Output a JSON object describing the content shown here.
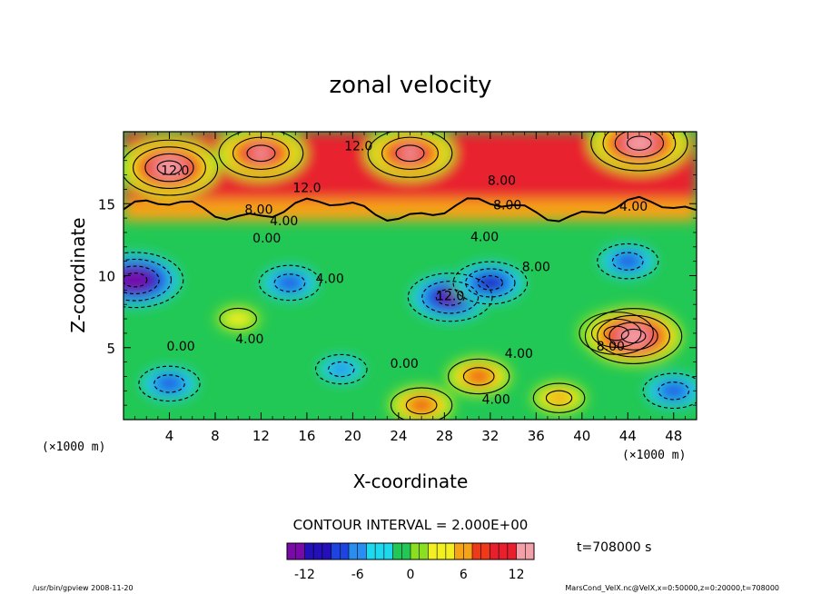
{
  "chart_data": {
    "type": "heatmap",
    "title": "zonal velocity",
    "xlabel": "X-coordinate",
    "ylabel": "Z-coordinate",
    "x_unit": "(×1000 m)",
    "z_unit": "(×1000 m)",
    "xlim": [
      0,
      50
    ],
    "ylim": [
      0,
      20
    ],
    "x_ticks": [
      4,
      8,
      12,
      16,
      20,
      24,
      28,
      32,
      36,
      40,
      44,
      48
    ],
    "y_ticks": [
      5,
      10,
      15
    ],
    "contour_interval_text": "CONTOUR INTERVAL = 2.000E+00",
    "time_text": "t=708000 s",
    "colorbar": {
      "range": [
        -14,
        14
      ],
      "ticks": [
        -12,
        -6,
        0,
        6,
        12
      ],
      "colors": [
        "#7a0aa8",
        "#2410b8",
        "#1e44e0",
        "#2a8ef0",
        "#20d8ee",
        "#22c855",
        "#8ae020",
        "#f2f020",
        "#f5a318",
        "#ee3a18",
        "#e8202e",
        "#f4a0a8"
      ]
    },
    "features": [
      {
        "x": 1,
        "z": 9.7,
        "u": -14
      },
      {
        "x": 4,
        "z": 2.5,
        "u": -8
      },
      {
        "x": 10,
        "z": 7,
        "u": 4
      },
      {
        "x": 14.5,
        "z": 9.5,
        "u": -8
      },
      {
        "x": 19,
        "z": 3.5,
        "u": -6
      },
      {
        "x": 28.5,
        "z": 8.5,
        "u": -12
      },
      {
        "x": 32,
        "z": 9.5,
        "u": -10
      },
      {
        "x": 31,
        "z": 3,
        "u": 8
      },
      {
        "x": 43,
        "z": 6,
        "u": 10
      },
      {
        "x": 44.5,
        "z": 5.8,
        "u": 14
      },
      {
        "x": 44,
        "z": 11,
        "u": -8
      },
      {
        "x": 48,
        "z": 2,
        "u": -8
      },
      {
        "x": 26,
        "z": 1,
        "u": 8
      },
      {
        "x": 38,
        "z": 1.5,
        "u": 6
      },
      {
        "x": 25,
        "z": 18.5,
        "u": 12
      },
      {
        "x": 45,
        "z": 19.2,
        "u": 14
      },
      {
        "x": 4,
        "z": 17.5,
        "u": 14
      },
      {
        "x": 12,
        "z": 18.5,
        "u": 12
      }
    ],
    "contour_labels": [
      {
        "text": "12.0",
        "x": 20.5,
        "z": 18.7
      },
      {
        "text": "12.0",
        "x": 4.5,
        "z": 17
      },
      {
        "text": "12.0",
        "x": 16,
        "z": 15.8
      },
      {
        "text": "8.00",
        "x": 33,
        "z": 16.3
      },
      {
        "text": "8.00",
        "x": 33.5,
        "z": 14.6
      },
      {
        "text": "8.00",
        "x": 11.8,
        "z": 14.3
      },
      {
        "text": "4.00",
        "x": 14,
        "z": 13.5
      },
      {
        "text": "0.00",
        "x": 12.5,
        "z": 12.3
      },
      {
        "text": "4.00",
        "x": 31.5,
        "z": 12.4
      },
      {
        "text": "4.00",
        "x": 44.5,
        "z": 14.5
      },
      {
        "text": "4.00",
        "x": 18,
        "z": 9.5
      },
      {
        "text": "8.00",
        "x": 36,
        "z": 10.3
      },
      {
        "text": "12.0",
        "x": 28.5,
        "z": 8.3
      },
      {
        "text": "4.00",
        "x": 11,
        "z": 5.3
      },
      {
        "text": "0.00",
        "x": 5,
        "z": 4.8
      },
      {
        "text": "0.00",
        "x": 24.5,
        "z": 3.6
      },
      {
        "text": "4.00",
        "x": 34.5,
        "z": 4.3
      },
      {
        "text": "8.00",
        "x": 42.5,
        "z": 4.8
      },
      {
        "text": "4.00",
        "x": 32.5,
        "z": 1.1
      }
    ]
  },
  "footer": {
    "left": "/usr/bin/gpview  2008-11-20",
    "right": "MarsCond_VelX.nc@VelX,x=0:50000,z=0:20000,t=708000"
  }
}
